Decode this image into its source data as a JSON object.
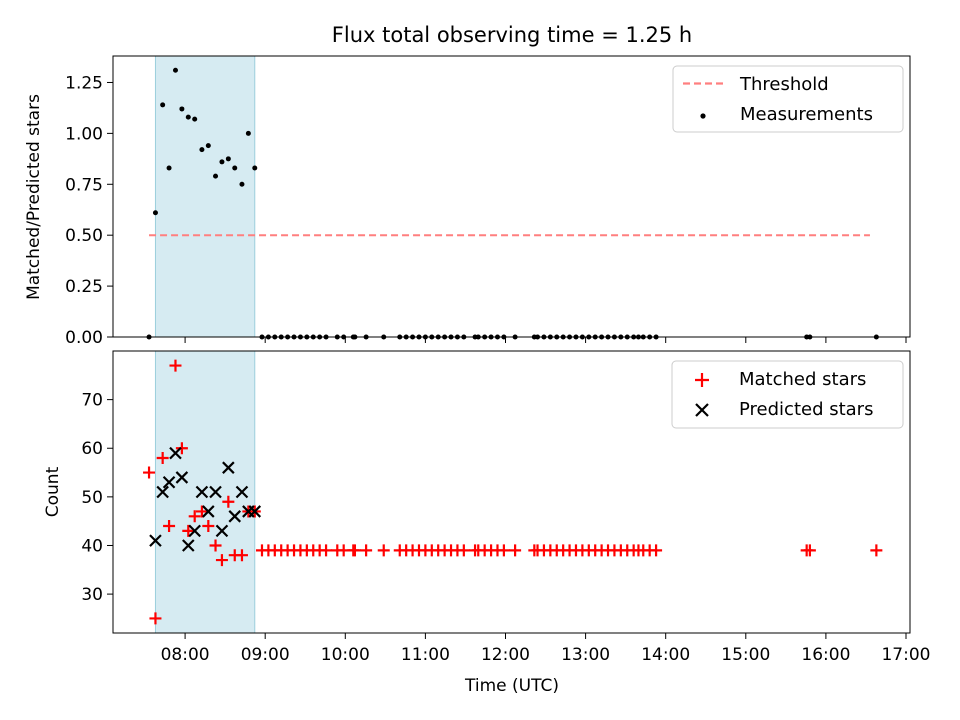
{
  "chart_data": [
    {
      "type": "scatter",
      "title": "Flux total observing time = 1.25 h",
      "xlabel": "",
      "ylabel": "Matched/Predicted stars",
      "xlim": [
        7.1,
        17.05
      ],
      "ylim": [
        0,
        1.38
      ],
      "yticks": [
        0.0,
        0.25,
        0.5,
        0.75,
        1.0,
        1.25
      ],
      "ytick_labels": [
        "0.00",
        "0.25",
        "0.50",
        "0.75",
        "1.00",
        "1.25"
      ],
      "shaded_span": [
        7.63,
        8.87
      ],
      "legend": {
        "placement": "top-right",
        "entries": [
          "Threshold",
          "Measurements"
        ]
      },
      "series": [
        {
          "name": "Threshold",
          "kind": "dashed-line",
          "x": [
            7.55,
            16.55
          ],
          "y": [
            0.5,
            0.5
          ],
          "color": "#ff7f7f"
        },
        {
          "name": "Measurements",
          "kind": "dots",
          "color": "#000000",
          "x": [
            7.55,
            7.63,
            7.72,
            7.8,
            7.88,
            7.96,
            8.04,
            8.12,
            8.21,
            8.29,
            8.38,
            8.46,
            8.54,
            8.62,
            8.71,
            8.79,
            8.87,
            8.96,
            9.04,
            9.12,
            9.2,
            9.28,
            9.36,
            9.44,
            9.52,
            9.6,
            9.68,
            9.76,
            9.9,
            9.98,
            10.1,
            10.12,
            10.26,
            10.48,
            10.68,
            10.76,
            10.84,
            10.92,
            11.0,
            11.08,
            11.16,
            11.24,
            11.32,
            11.4,
            11.48,
            11.62,
            11.66,
            11.74,
            11.82,
            11.9,
            11.98,
            12.12,
            12.36,
            12.4,
            12.48,
            12.56,
            12.64,
            12.72,
            12.8,
            12.88,
            12.96,
            13.04,
            13.12,
            13.2,
            13.28,
            13.36,
            13.44,
            13.52,
            13.6,
            13.66,
            13.72,
            13.8,
            13.88,
            15.76,
            15.8,
            16.63
          ],
          "y": [
            0.0,
            0.61,
            1.14,
            0.83,
            1.31,
            1.12,
            1.08,
            1.07,
            0.92,
            0.94,
            0.79,
            0.86,
            0.875,
            0.83,
            0.75,
            1.0,
            0.83,
            0,
            0,
            0,
            0,
            0,
            0,
            0,
            0,
            0,
            0,
            0,
            0,
            0,
            0,
            0,
            0,
            0,
            0,
            0,
            0,
            0,
            0,
            0,
            0,
            0,
            0,
            0,
            0,
            0,
            0,
            0,
            0,
            0,
            0,
            0,
            0,
            0,
            0,
            0,
            0,
            0,
            0,
            0,
            0,
            0,
            0,
            0,
            0,
            0,
            0,
            0,
            0,
            0,
            0,
            0,
            0,
            0,
            0,
            0
          ]
        }
      ]
    },
    {
      "type": "scatter",
      "title": "",
      "xlabel": "Time (UTC)",
      "ylabel": "Count",
      "xlim": [
        7.1,
        17.05
      ],
      "ylim": [
        22,
        80
      ],
      "yticks": [
        30,
        40,
        50,
        60,
        70
      ],
      "ytick_labels": [
        "30",
        "40",
        "50",
        "60",
        "70"
      ],
      "xticks": [
        8,
        9,
        10,
        11,
        12,
        13,
        14,
        15,
        16,
        17
      ],
      "xtick_labels": [
        "08:00",
        "09:00",
        "10:00",
        "11:00",
        "12:00",
        "13:00",
        "14:00",
        "15:00",
        "16:00",
        "17:00"
      ],
      "shaded_span": [
        7.63,
        8.87
      ],
      "legend": {
        "placement": "top-right",
        "entries": [
          "Matched stars",
          "Predicted stars"
        ]
      },
      "series": [
        {
          "name": "Matched stars",
          "kind": "plus",
          "color": "#ff0000",
          "x": [
            7.55,
            7.63,
            7.72,
            7.8,
            7.88,
            7.96,
            8.04,
            8.12,
            8.21,
            8.29,
            8.38,
            8.46,
            8.54,
            8.62,
            8.71,
            8.79,
            8.87,
            8.96,
            9.04,
            9.12,
            9.2,
            9.28,
            9.36,
            9.44,
            9.52,
            9.6,
            9.68,
            9.76,
            9.9,
            9.98,
            10.1,
            10.12,
            10.26,
            10.48,
            10.68,
            10.76,
            10.84,
            10.92,
            11.0,
            11.08,
            11.16,
            11.24,
            11.32,
            11.4,
            11.48,
            11.62,
            11.66,
            11.74,
            11.82,
            11.9,
            11.98,
            12.12,
            12.36,
            12.4,
            12.48,
            12.56,
            12.64,
            12.72,
            12.8,
            12.88,
            12.96,
            13.04,
            13.12,
            13.2,
            13.28,
            13.36,
            13.44,
            13.52,
            13.6,
            13.66,
            13.72,
            13.8,
            13.88,
            15.76,
            15.8,
            16.63
          ],
          "y": [
            55,
            25,
            58,
            44,
            77,
            60,
            43,
            46,
            47,
            44,
            40,
            37,
            49,
            38,
            38,
            47,
            47,
            39,
            39,
            39,
            39,
            39,
            39,
            39,
            39,
            39,
            39,
            39,
            39,
            39,
            39,
            39,
            39,
            39,
            39,
            39,
            39,
            39,
            39,
            39,
            39,
            39,
            39,
            39,
            39,
            39,
            39,
            39,
            39,
            39,
            39,
            39,
            39,
            39,
            39,
            39,
            39,
            39,
            39,
            39,
            39,
            39,
            39,
            39,
            39,
            39,
            39,
            39,
            39,
            39,
            39,
            39,
            39,
            39,
            39,
            39
          ]
        },
        {
          "name": "Predicted stars",
          "kind": "cross",
          "color": "#000000",
          "x": [
            7.63,
            7.72,
            7.8,
            7.88,
            7.96,
            8.04,
            8.12,
            8.21,
            8.29,
            8.38,
            8.46,
            8.54,
            8.62,
            8.71,
            8.79,
            8.87
          ],
          "y": [
            41,
            51,
            53,
            59,
            54,
            40,
            43,
            51,
            47,
            51,
            43,
            56,
            46,
            51,
            47,
            47
          ]
        }
      ]
    }
  ]
}
